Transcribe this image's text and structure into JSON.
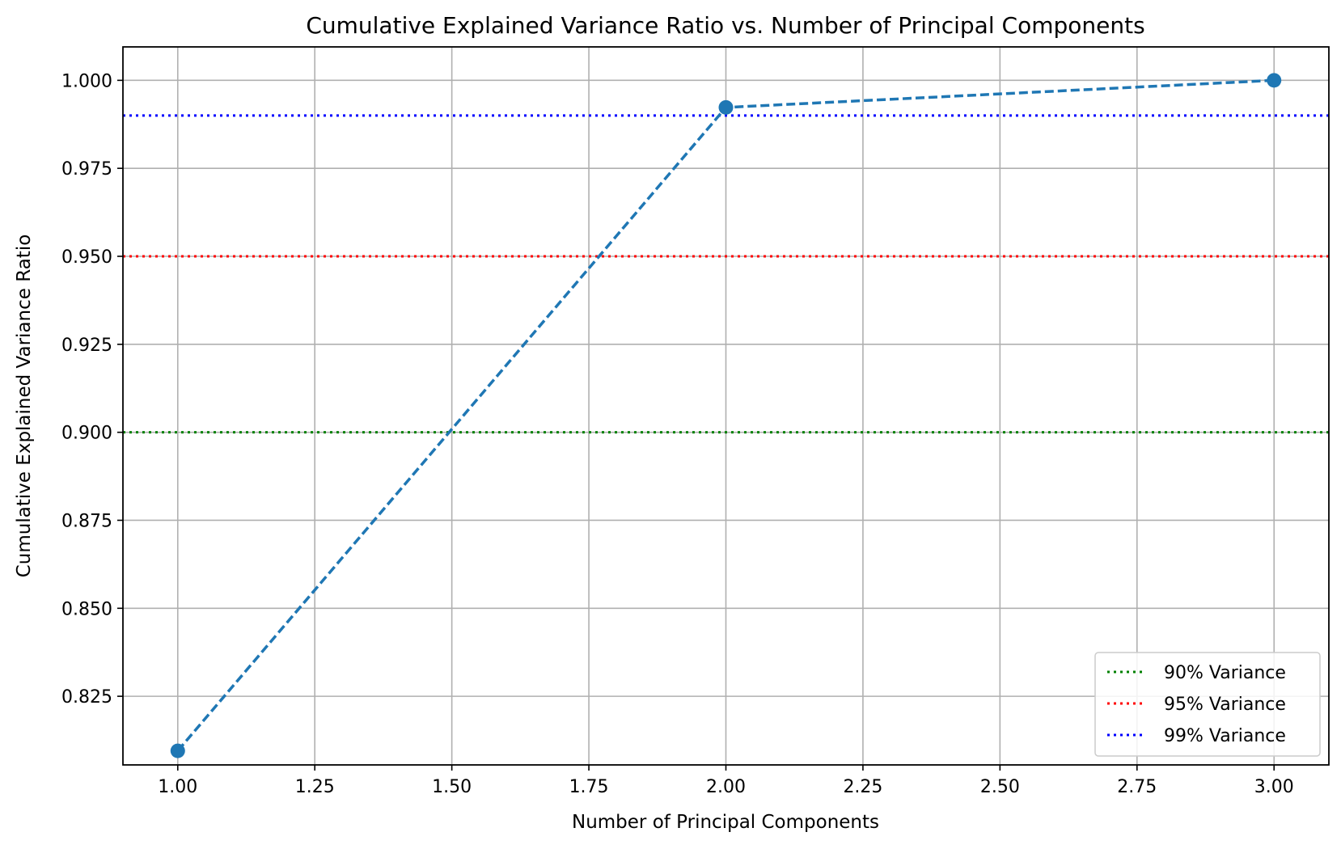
{
  "chart_data": {
    "type": "line",
    "title": "Cumulative Explained Variance Ratio vs. Number of Principal Components",
    "xlabel": "Number of Principal Components",
    "ylabel": "Cumulative Explained Variance Ratio",
    "xlim": [
      0.9,
      3.1
    ],
    "ylim": [
      0.8055,
      1.0095
    ],
    "xticks": [
      1.0,
      1.25,
      1.5,
      1.75,
      2.0,
      2.25,
      2.5,
      2.75,
      3.0
    ],
    "xtick_labels": [
      "1.00",
      "1.25",
      "1.50",
      "1.75",
      "2.00",
      "2.25",
      "2.50",
      "2.75",
      "3.00"
    ],
    "yticks": [
      0.825,
      0.85,
      0.875,
      0.9,
      0.925,
      0.95,
      0.975,
      1.0
    ],
    "ytick_labels": [
      "0.825",
      "0.850",
      "0.875",
      "0.900",
      "0.925",
      "0.950",
      "0.975",
      "1.000"
    ],
    "grid": true,
    "legend_position": "lower-right",
    "series": [
      {
        "x": [
          1,
          2,
          3
        ],
        "y": [
          0.8095,
          0.9923,
          1.0
        ],
        "color": "#1f77b4",
        "line_style": "dashed",
        "marker": "circle"
      }
    ],
    "reference_lines": [
      {
        "name": "90% Variance",
        "y": 0.9,
        "color": "#008000",
        "line_style": "dotted"
      },
      {
        "name": "95% Variance",
        "y": 0.95,
        "color": "#ff0000",
        "line_style": "dotted"
      },
      {
        "name": "99% Variance",
        "y": 0.99,
        "color": "#0000ff",
        "line_style": "dotted"
      }
    ]
  }
}
